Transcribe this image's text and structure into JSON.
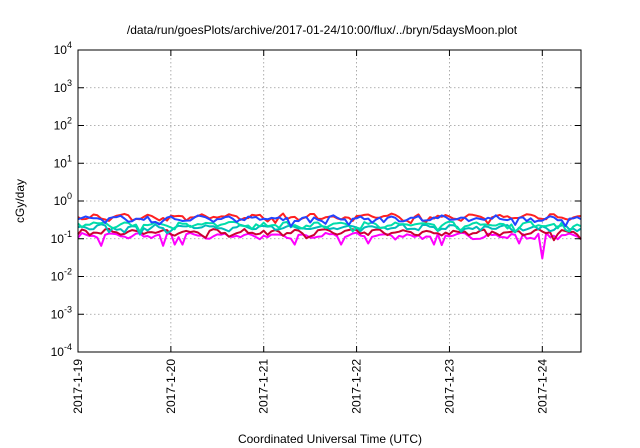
{
  "chart_data": {
    "type": "line",
    "title": "/data/run/goesPlots/archive/2017-01-24/10:00/flux/../bryn/5daysMoon.plot",
    "xlabel": "Coordinated Universal Time (UTC)",
    "ylabel": "cGy/day",
    "yscale": "log",
    "ylim": [
      0.0001,
      10000
    ],
    "y_ticks": [
      {
        "value": 0.0001,
        "base": "10",
        "exp": "-4"
      },
      {
        "value": 0.001,
        "base": "10",
        "exp": "-3"
      },
      {
        "value": 0.01,
        "base": "10",
        "exp": "-2"
      },
      {
        "value": 0.1,
        "base": "10",
        "exp": "-1"
      },
      {
        "value": 1,
        "base": "10",
        "exp": "0"
      },
      {
        "value": 10,
        "base": "10",
        "exp": "1"
      },
      {
        "value": 100,
        "base": "10",
        "exp": "2"
      },
      {
        "value": 1000,
        "base": "10",
        "exp": "3"
      },
      {
        "value": 10000,
        "base": "10",
        "exp": "4"
      }
    ],
    "x_range": [
      "2017-01-19 00:00",
      "2017-01-24 10:00"
    ],
    "x_ticks": [
      "2017-1-19",
      "2017-1-20",
      "2017-1-21",
      "2017-1-22",
      "2017-1-23",
      "2017-1-24"
    ],
    "grid": true,
    "legend": "none",
    "series": [
      {
        "color": "#ff00ff",
        "level": 0.12,
        "dip_min": 0.03,
        "dips": [
          [
            "2017-01-19 06:00",
            0.065
          ],
          [
            "2017-01-19 22:00",
            0.065
          ],
          [
            "2017-01-20 01:00",
            0.07
          ],
          [
            "2017-01-20 03:00",
            0.07
          ],
          [
            "2017-01-21 08:00",
            0.07
          ],
          [
            "2017-01-21 20:00",
            0.07
          ],
          [
            "2017-01-22 03:00",
            0.075
          ],
          [
            "2017-01-22 20:00",
            0.07
          ],
          [
            "2017-01-22 22:00",
            0.068
          ],
          [
            "2017-01-23 18:00",
            0.075
          ],
          [
            "2017-01-24 00:00",
            0.03
          ]
        ]
      },
      {
        "color": "#cc0033",
        "level": 0.15
      },
      {
        "color": "#00bbbb",
        "level": 0.2
      },
      {
        "color": "#00ddaa",
        "level": 0.24
      },
      {
        "color": "#ff2020",
        "level": 0.38
      },
      {
        "color": "#2244ff",
        "level": 0.34
      }
    ]
  }
}
